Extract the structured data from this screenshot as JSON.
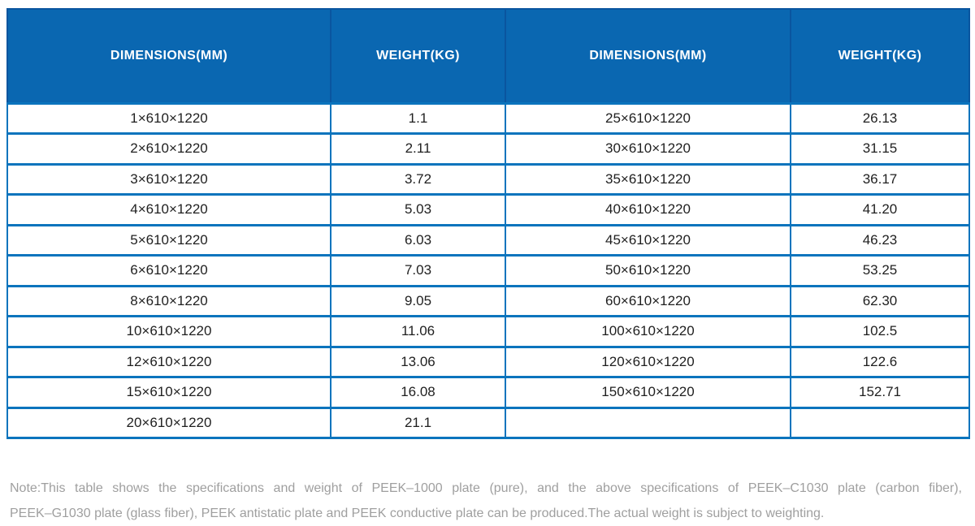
{
  "table": {
    "headers": [
      "DIMENSIONS(MM)",
      "WEIGHT(KG)",
      "DIMENSIONS(MM)",
      "WEIGHT(KG)"
    ],
    "rows": [
      [
        "1×610×1220",
        "1.1",
        "25×610×1220",
        "26.13"
      ],
      [
        "2×610×1220",
        "2.11",
        "30×610×1220",
        "31.15"
      ],
      [
        "3×610×1220",
        "3.72",
        "35×610×1220",
        "36.17"
      ],
      [
        "4×610×1220",
        "5.03",
        "40×610×1220",
        "41.20"
      ],
      [
        "5×610×1220",
        "6.03",
        "45×610×1220",
        "46.23"
      ],
      [
        "6×610×1220",
        "7.03",
        "50×610×1220",
        "53.25"
      ],
      [
        "8×610×1220",
        "9.05",
        "60×610×1220",
        "62.30"
      ],
      [
        "10×610×1220",
        "11.06",
        "100×610×1220",
        "102.5"
      ],
      [
        "12×610×1220",
        "13.06",
        "120×610×1220",
        "122.6"
      ],
      [
        "15×610×1220",
        "16.08",
        "150×610×1220",
        "152.71"
      ],
      [
        "20×610×1220",
        "21.1",
        "",
        ""
      ]
    ]
  },
  "note": {
    "lines": [
      "Note:This table shows the specifications and weight of PEEK–1000 plate (pure), and the above specifications of PEEK–C1030 plate (carbon fiber),",
      "PEEK–G1030 plate (glass fiber), PEEK antistatic plate and PEEK conductive plate can be produced.The actual weight is subject to weighting."
    ]
  },
  "colors": {
    "header_bg": "#0a67b1",
    "header_divider": "#0a559f",
    "grid": "#0b74bd",
    "cell_text": "#1f1f1f",
    "note_text": "#9f9f9f",
    "page_bg": "#ffffff"
  }
}
